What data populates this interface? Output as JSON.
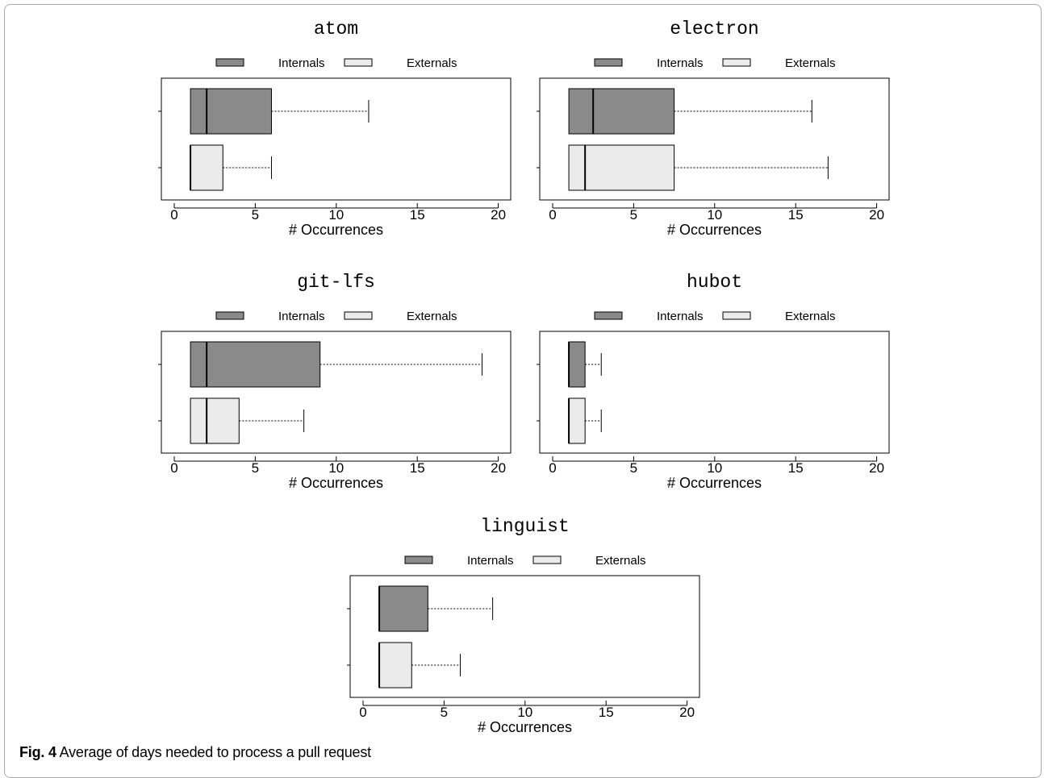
{
  "caption": {
    "label": "Fig. 4",
    "text": "Average of days needed to process a pull request"
  },
  "colors": {
    "internals_fill": "#8a8a8a",
    "externals_fill": "#ebebeb",
    "stroke": "#000000"
  },
  "chart_data": [
    {
      "type": "boxplot",
      "title": "atom",
      "xlabel": "# Occurrences",
      "xlim": [
        0,
        20
      ],
      "xticks": [
        0,
        5,
        10,
        15,
        20
      ],
      "legend": {
        "placement": "top",
        "entries": [
          "Internals",
          "Externals"
        ]
      },
      "series": [
        {
          "name": "Internals",
          "min": 1,
          "q1": 1,
          "median": 2,
          "q3": 6,
          "max": 12
        },
        {
          "name": "Externals",
          "min": 1,
          "q1": 1,
          "median": 1,
          "q3": 3,
          "max": 6
        }
      ]
    },
    {
      "type": "boxplot",
      "title": "electron",
      "xlabel": "# Occurrences",
      "xlim": [
        0,
        20
      ],
      "xticks": [
        0,
        5,
        10,
        15,
        20
      ],
      "legend": {
        "placement": "top",
        "entries": [
          "Internals",
          "Externals"
        ]
      },
      "series": [
        {
          "name": "Internals",
          "min": 1,
          "q1": 1,
          "median": 2.5,
          "q3": 7.5,
          "max": 16
        },
        {
          "name": "Externals",
          "min": 1,
          "q1": 1,
          "median": 2,
          "q3": 7.5,
          "max": 17
        }
      ]
    },
    {
      "type": "boxplot",
      "title": "git-lfs",
      "xlabel": "# Occurrences",
      "xlim": [
        0,
        20
      ],
      "xticks": [
        0,
        5,
        10,
        15,
        20
      ],
      "legend": {
        "placement": "top",
        "entries": [
          "Internals",
          "Externals"
        ]
      },
      "series": [
        {
          "name": "Internals",
          "min": 1,
          "q1": 1,
          "median": 2,
          "q3": 9,
          "max": 19
        },
        {
          "name": "Externals",
          "min": 1,
          "q1": 1,
          "median": 2,
          "q3": 4,
          "max": 8
        }
      ]
    },
    {
      "type": "boxplot",
      "title": "hubot",
      "xlabel": "# Occurrences",
      "xlim": [
        0,
        20
      ],
      "xticks": [
        0,
        5,
        10,
        15,
        20
      ],
      "legend": {
        "placement": "top",
        "entries": [
          "Internals",
          "Externals"
        ]
      },
      "series": [
        {
          "name": "Internals",
          "min": 1,
          "q1": 1,
          "median": 1,
          "q3": 2,
          "max": 3
        },
        {
          "name": "Externals",
          "min": 1,
          "q1": 1,
          "median": 1,
          "q3": 2,
          "max": 3
        }
      ]
    },
    {
      "type": "boxplot",
      "title": "linguist",
      "xlabel": "# Occurrences",
      "xlim": [
        0,
        20
      ],
      "xticks": [
        0,
        5,
        10,
        15,
        20
      ],
      "legend": {
        "placement": "top",
        "entries": [
          "Internals",
          "Externals"
        ]
      },
      "series": [
        {
          "name": "Internals",
          "min": 1,
          "q1": 1,
          "median": 1,
          "q3": 4,
          "max": 8
        },
        {
          "name": "Externals",
          "min": 1,
          "q1": 1,
          "median": 1,
          "q3": 3,
          "max": 6
        }
      ]
    }
  ]
}
